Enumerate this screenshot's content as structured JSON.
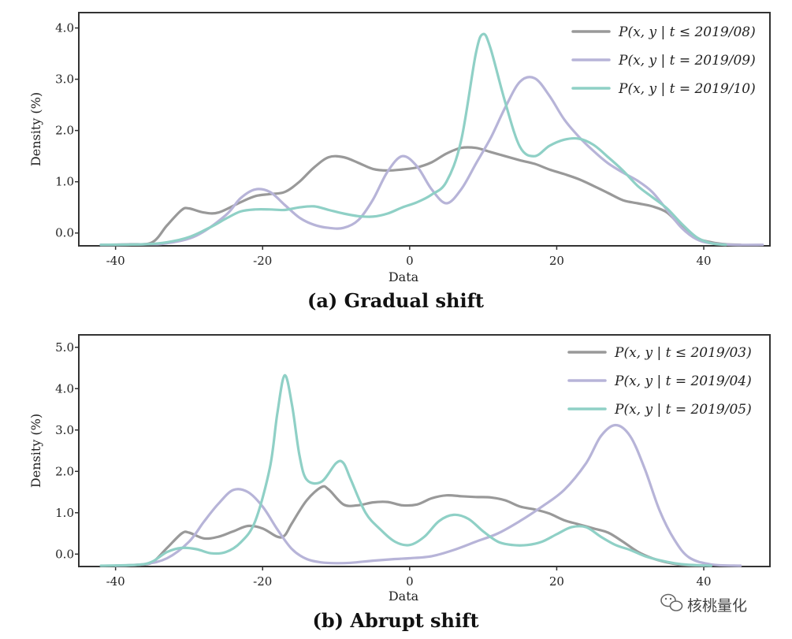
{
  "watermark": {
    "text": "核桃量化",
    "icon": "wechat-icon"
  },
  "chart_data": [
    {
      "type": "line",
      "caption": "(a) Gradual shift",
      "xlabel": "Data",
      "ylabel": "Density (%)",
      "xlim": [
        -45,
        49
      ],
      "ylim": [
        -0.25,
        4.3
      ],
      "xticks": [
        -40,
        -20,
        0,
        20,
        40
      ],
      "xtick_labels": [
        "-40",
        "-20",
        "0",
        "20",
        "40"
      ],
      "yticks": [
        0,
        1,
        2,
        3,
        4
      ],
      "ytick_labels": [
        "0.0",
        "1.0",
        "2.0",
        "3.0",
        "4.0"
      ],
      "grid": false,
      "legend_position": "top-right",
      "series": [
        {
          "name": "P(x, y | t ≤ 2019/08)",
          "color": "#999999",
          "x": [
            -42,
            -38,
            -35,
            -33,
            -31,
            -30,
            -28,
            -26,
            -23,
            -21,
            -19,
            -17,
            -15,
            -13,
            -11,
            -9,
            -7,
            -5,
            -3,
            -1,
            1,
            3,
            5,
            7,
            9,
            11,
            13,
            15,
            17,
            19,
            21,
            23,
            25,
            27,
            29,
            31,
            33,
            35,
            37,
            39,
            41,
            43,
            45
          ],
          "y": [
            -0.23,
            -0.22,
            -0.18,
            0.15,
            0.45,
            0.48,
            0.4,
            0.4,
            0.6,
            0.72,
            0.76,
            0.8,
            1.0,
            1.28,
            1.48,
            1.48,
            1.37,
            1.25,
            1.22,
            1.24,
            1.28,
            1.38,
            1.55,
            1.66,
            1.66,
            1.58,
            1.5,
            1.42,
            1.35,
            1.24,
            1.15,
            1.05,
            0.92,
            0.78,
            0.64,
            0.58,
            0.52,
            0.4,
            0.12,
            -0.1,
            -0.18,
            -0.22,
            -0.23
          ]
        },
        {
          "name": "P(x, y | t = 2019/09)",
          "color": "#b7b4d8",
          "x": [
            -42,
            -36,
            -33,
            -29,
            -25,
            -23,
            -21,
            -19,
            -17,
            -15,
            -13,
            -11,
            -9,
            -7,
            -5,
            -3,
            -1,
            1,
            3,
            5,
            7,
            9,
            11,
            13,
            15,
            17,
            19,
            21,
            23,
            25,
            27,
            29,
            31,
            33,
            35,
            37,
            39,
            41,
            44,
            48
          ],
          "y": [
            -0.23,
            -0.22,
            -0.2,
            -0.05,
            0.35,
            0.68,
            0.85,
            0.8,
            0.55,
            0.3,
            0.16,
            0.1,
            0.1,
            0.25,
            0.65,
            1.2,
            1.5,
            1.3,
            0.85,
            0.58,
            0.85,
            1.35,
            1.85,
            2.45,
            2.95,
            3.02,
            2.68,
            2.22,
            1.88,
            1.6,
            1.36,
            1.18,
            1.02,
            0.8,
            0.45,
            0.1,
            -0.12,
            -0.2,
            -0.23,
            -0.23
          ]
        },
        {
          "name": "P(x, y | t = 2019/10)",
          "color": "#8fd0c6",
          "x": [
            -42,
            -36,
            -33,
            -30,
            -27,
            -25,
            -23,
            -21,
            -19,
            -17,
            -15,
            -13,
            -11,
            -9,
            -7,
            -5,
            -3,
            -1,
            1,
            3,
            5,
            7,
            9,
            10,
            11,
            13,
            15,
            17,
            19,
            21,
            23,
            25,
            27,
            29,
            31,
            33,
            35,
            37,
            39,
            41,
            43
          ],
          "y": [
            -0.23,
            -0.22,
            -0.18,
            -0.08,
            0.12,
            0.28,
            0.42,
            0.46,
            0.46,
            0.45,
            0.5,
            0.52,
            0.45,
            0.38,
            0.33,
            0.32,
            0.38,
            0.5,
            0.6,
            0.75,
            1.0,
            1.8,
            3.5,
            3.88,
            3.6,
            2.55,
            1.68,
            1.5,
            1.7,
            1.82,
            1.84,
            1.72,
            1.48,
            1.22,
            0.92,
            0.7,
            0.48,
            0.18,
            -0.08,
            -0.2,
            -0.23
          ]
        }
      ]
    },
    {
      "type": "line",
      "caption": "(b) Abrupt shift",
      "xlabel": "Data",
      "ylabel": "Density (%)",
      "xlim": [
        -45,
        49
      ],
      "ylim": [
        -0.3,
        5.3
      ],
      "xticks": [
        -40,
        -20,
        0,
        20,
        40
      ],
      "xtick_labels": [
        "-40",
        "-20",
        "0",
        "20",
        "40"
      ],
      "yticks": [
        0,
        1,
        2,
        3,
        4,
        5
      ],
      "ytick_labels": [
        "0.0",
        "1.0",
        "2.0",
        "3.0",
        "4.0",
        "5.0"
      ],
      "grid": false,
      "legend_position": "top-right",
      "series": [
        {
          "name": "P(x, y | t ≤ 2019/03)",
          "color": "#999999",
          "x": [
            -40,
            -37,
            -35,
            -33,
            -31,
            -30,
            -28,
            -26,
            -24,
            -22,
            -20,
            -18,
            -17,
            -16,
            -14,
            -12,
            -11,
            -9,
            -7,
            -5,
            -3,
            -1,
            1,
            3,
            5,
            7,
            9,
            11,
            13,
            15,
            17,
            19,
            21,
            23,
            25,
            27,
            29,
            31,
            33,
            35,
            37,
            40
          ],
          "y": [
            -0.28,
            -0.26,
            -0.2,
            0.15,
            0.5,
            0.52,
            0.38,
            0.42,
            0.55,
            0.68,
            0.62,
            0.42,
            0.45,
            0.75,
            1.3,
            1.62,
            1.56,
            1.2,
            1.18,
            1.25,
            1.26,
            1.18,
            1.2,
            1.35,
            1.42,
            1.4,
            1.38,
            1.37,
            1.3,
            1.15,
            1.08,
            0.98,
            0.82,
            0.72,
            0.62,
            0.52,
            0.3,
            0.06,
            -0.1,
            -0.2,
            -0.26,
            -0.28
          ]
        },
        {
          "name": "P(x, y | t = 2019/04)",
          "color": "#b7b4d8",
          "x": [
            -40,
            -36,
            -33,
            -30,
            -28,
            -26,
            -24,
            -22,
            -20,
            -18,
            -16,
            -14,
            -12,
            -10,
            -8,
            -5,
            -2,
            0,
            3,
            6,
            9,
            12,
            15,
            18,
            21,
            24,
            26,
            28,
            30,
            32,
            34,
            36,
            38,
            41,
            45
          ],
          "y": [
            -0.28,
            -0.24,
            -0.1,
            0.3,
            0.78,
            1.22,
            1.55,
            1.5,
            1.15,
            0.6,
            0.12,
            -0.12,
            -0.2,
            -0.22,
            -0.21,
            -0.16,
            -0.12,
            -0.1,
            -0.05,
            0.1,
            0.3,
            0.5,
            0.8,
            1.15,
            1.55,
            2.2,
            2.85,
            3.12,
            2.85,
            2.05,
            1.05,
            0.35,
            -0.08,
            -0.25,
            -0.28
          ]
        },
        {
          "name": "P(x, y | t = 2019/05)",
          "color": "#8fd0c6",
          "x": [
            -42,
            -37,
            -35,
            -33,
            -31,
            -29,
            -27,
            -25,
            -23,
            -21,
            -19,
            -18,
            -17,
            -16,
            -15,
            -14,
            -12,
            -10,
            -9,
            -8,
            -6,
            -4,
            -2,
            0,
            2,
            4,
            6,
            8,
            10,
            12,
            14,
            16,
            18,
            20,
            22,
            24,
            26,
            28,
            30,
            32,
            34,
            36,
            38,
            41
          ],
          "y": [
            -0.28,
            -0.26,
            -0.18,
            0.05,
            0.15,
            0.12,
            0.02,
            0.05,
            0.28,
            0.8,
            2.1,
            3.4,
            4.32,
            3.6,
            2.4,
            1.8,
            1.75,
            2.2,
            2.2,
            1.8,
            1.0,
            0.6,
            0.3,
            0.22,
            0.42,
            0.8,
            0.95,
            0.85,
            0.55,
            0.3,
            0.22,
            0.22,
            0.3,
            0.48,
            0.65,
            0.65,
            0.42,
            0.22,
            0.1,
            -0.05,
            -0.15,
            -0.22,
            -0.26,
            -0.28
          ]
        }
      ]
    }
  ]
}
